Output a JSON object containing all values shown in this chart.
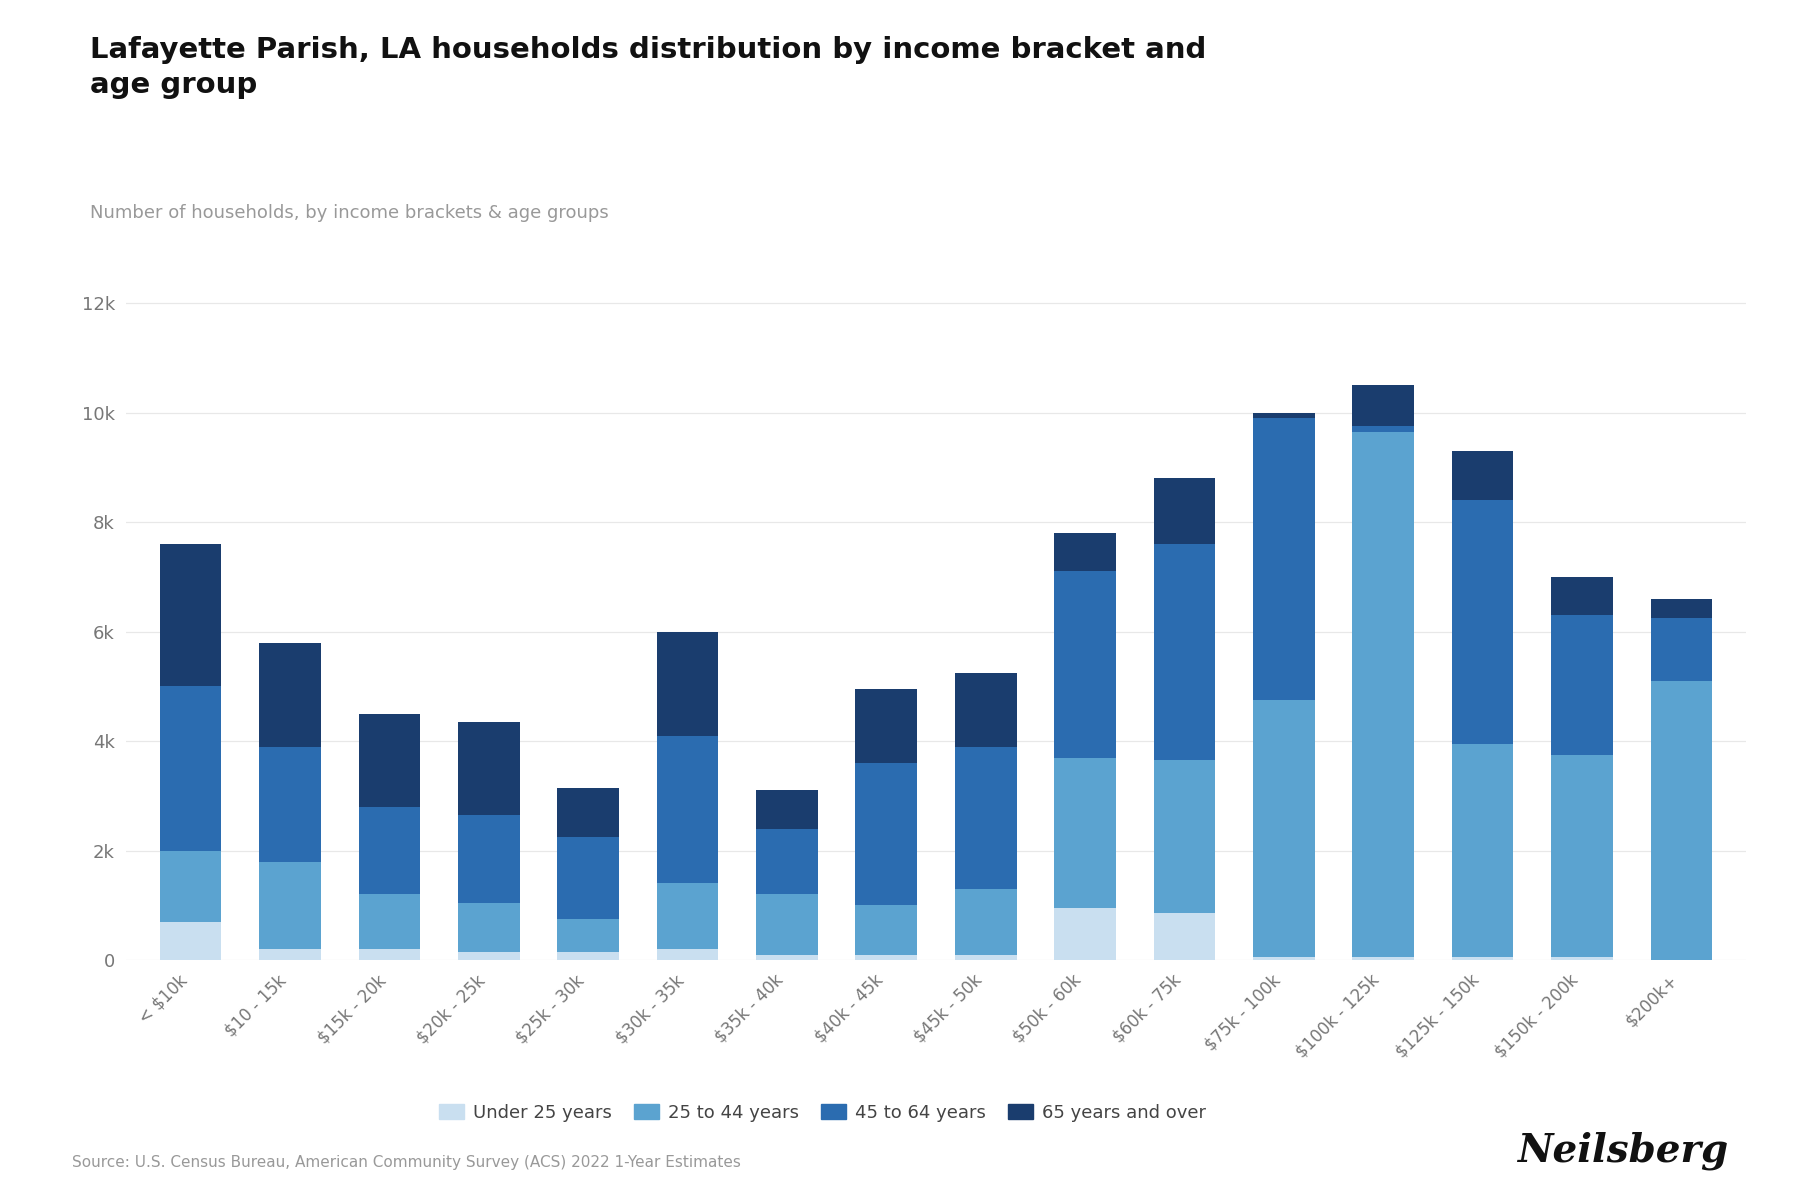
{
  "title": "Lafayette Parish, LA households distribution by income bracket and\nage group",
  "subtitle": "Number of households, by income brackets & age groups",
  "source": "Source: U.S. Census Bureau, American Community Survey (ACS) 2022 1-Year Estimates",
  "categories": [
    "< $10k",
    "$10 - 15k",
    "$15k - 20k",
    "$20k - 25k",
    "$25k - 30k",
    "$30k - 35k",
    "$35k - 40k",
    "$40k - 45k",
    "$45k - 50k",
    "$50k - 60k",
    "$60k - 75k",
    "$75k - 100k",
    "$100k - 125k",
    "$125k - 150k",
    "$150k - 200k",
    "$200k+"
  ],
  "age_groups": [
    "Under 25 years",
    "25 to 44 years",
    "45 to 64 years",
    "65 years and over"
  ],
  "colors": [
    "#c9dff0",
    "#5ba3d0",
    "#2b6cb0",
    "#1a3d6e"
  ],
  "under25": [
    700,
    200,
    200,
    150,
    150,
    200,
    100,
    100,
    100,
    950,
    850,
    50,
    50,
    50,
    50,
    0
  ],
  "age2544": [
    1300,
    1600,
    1000,
    900,
    600,
    1200,
    1100,
    900,
    1200,
    2750,
    2800,
    4700,
    9600,
    3900,
    3700,
    5100
  ],
  "age4564": [
    3000,
    2100,
    1600,
    1600,
    1500,
    2700,
    1200,
    2600,
    2600,
    3400,
    3950,
    5150,
    100,
    4450,
    2550,
    1150
  ],
  "age65p": [
    2600,
    1900,
    1700,
    1700,
    900,
    1900,
    700,
    1350,
    1350,
    700,
    1200,
    100,
    750,
    900,
    700,
    350
  ],
  "ylim": [
    0,
    12500
  ],
  "yticks": [
    0,
    2000,
    4000,
    6000,
    8000,
    10000,
    12000
  ],
  "ytick_labels": [
    "0",
    "2k",
    "4k",
    "6k",
    "8k",
    "10k",
    "12k"
  ],
  "background_color": "#ffffff",
  "grid_color": "#e8e8e8"
}
